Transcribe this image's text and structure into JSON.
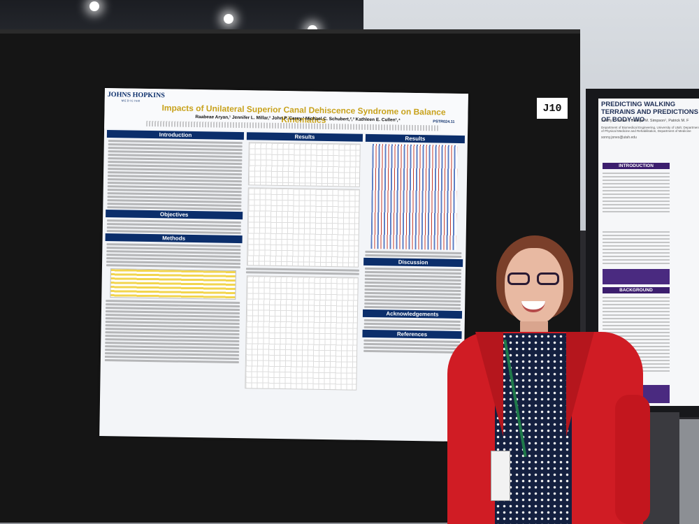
{
  "board": {
    "tag": "J10"
  },
  "poster": {
    "logo": "JOHNS HOPKINS",
    "logo_sub": "MEDICINE",
    "title": "Impacts of Unilateral Superior Canal Dehiscence Syndrome on Balance Kinematics",
    "authors": "Raabeae Aryan,¹ Jennifer L. Millar,² John P. Carey,³ Michael C. Schubert,²,³ Kathleen E. Cullen¹,⁴",
    "poster_id": "PSTR024.11",
    "left_sections": [
      {
        "heading": "Introduction",
        "lines": 14
      },
      {
        "heading": "Objectives",
        "lines": 5
      },
      {
        "heading": "Methods",
        "lines": 26
      }
    ],
    "middle_sections": [
      {
        "heading": "Results"
      }
    ],
    "right_sections": [
      {
        "heading": "Results"
      },
      {
        "heading": "Discussion",
        "lines": 12
      },
      {
        "heading": "Acknowledgements",
        "lines": 3
      },
      {
        "heading": "References",
        "lines": 4
      }
    ]
  },
  "poster2": {
    "title": "PREDICTING WALKING TERRAINS AND PREDICTIONS OF BODY-WO",
    "authors": "Sonny T. Jones¹, Grange M. Simpson¹, Patrick M. F",
    "affiliation": "Department of Biomedical Engineering, University of Utah; Department of Physical Medicine and Rehabilitation, Department of Medicine",
    "email": "sonny.jones@utah.edu",
    "sections": [
      "INTRODUCTION",
      "BACKGROUND"
    ]
  },
  "colors": {
    "poster_header": "#0b2e6b",
    "poster_title": "#c8a21c",
    "jacket": "#d01c24",
    "poster2_accent": "#3c1e6e"
  }
}
